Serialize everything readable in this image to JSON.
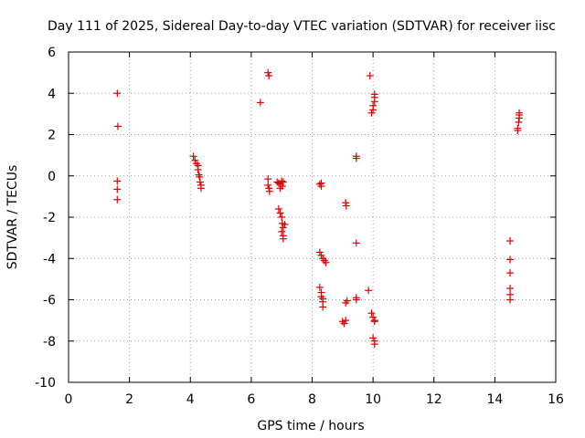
{
  "chart_data": {
    "type": "scatter",
    "title": "Day 111 of 2025, Sidereal Day-to-day VTEC variation (SDTVAR) for receiver iisc",
    "xlabel": "GPS time / hours",
    "ylabel": "SDTVAR / TECUs",
    "xlim": [
      0,
      16
    ],
    "ylim": [
      -10,
      6
    ],
    "xticks": [
      0,
      2,
      4,
      6,
      8,
      10,
      12,
      14,
      16
    ],
    "yticks": [
      -10,
      -8,
      -6,
      -4,
      -2,
      0,
      2,
      4,
      6
    ],
    "grid": true,
    "marker": "plus",
    "color": "#e00000",
    "series": [
      {
        "name": "SDTVAR",
        "points": [
          [
            1.6,
            4.0
          ],
          [
            1.62,
            2.4
          ],
          [
            1.6,
            -0.25
          ],
          [
            1.6,
            -0.65
          ],
          [
            1.6,
            -1.15
          ],
          [
            4.1,
            0.95
          ],
          [
            4.15,
            0.75
          ],
          [
            4.2,
            0.6
          ],
          [
            4.25,
            0.5
          ],
          [
            4.25,
            0.3
          ],
          [
            4.28,
            0.05
          ],
          [
            4.3,
            -0.05
          ],
          [
            4.32,
            -0.3
          ],
          [
            4.35,
            -0.45
          ],
          [
            4.35,
            -0.6
          ],
          [
            6.3,
            3.55
          ],
          [
            6.55,
            5.0
          ],
          [
            6.58,
            4.85
          ],
          [
            6.55,
            -0.15
          ],
          [
            6.55,
            -0.45
          ],
          [
            6.58,
            -0.6
          ],
          [
            6.6,
            -0.75
          ],
          [
            6.85,
            -0.3
          ],
          [
            6.9,
            -0.35
          ],
          [
            6.95,
            -0.4
          ],
          [
            7.0,
            -0.25
          ],
          [
            7.02,
            -0.5
          ],
          [
            7.05,
            -0.3
          ],
          [
            6.95,
            -0.6
          ],
          [
            6.9,
            -1.6
          ],
          [
            6.95,
            -1.8
          ],
          [
            7.0,
            -2.0
          ],
          [
            7.02,
            -2.3
          ],
          [
            7.05,
            -2.5
          ],
          [
            7.0,
            -2.7
          ],
          [
            7.05,
            -2.9
          ],
          [
            7.05,
            -3.05
          ],
          [
            7.1,
            -2.35
          ],
          [
            8.25,
            -0.4
          ],
          [
            8.3,
            -0.5
          ],
          [
            8.3,
            -0.35
          ],
          [
            8.25,
            -3.7
          ],
          [
            8.3,
            -3.85
          ],
          [
            8.35,
            -4.0
          ],
          [
            8.4,
            -4.1
          ],
          [
            8.45,
            -4.2
          ],
          [
            8.25,
            -5.4
          ],
          [
            8.3,
            -5.65
          ],
          [
            8.3,
            -5.85
          ],
          [
            8.35,
            -5.95
          ],
          [
            8.35,
            -6.1
          ],
          [
            8.35,
            -6.35
          ],
          [
            9.0,
            -7.05
          ],
          [
            9.05,
            -7.15
          ],
          [
            9.1,
            -7.0
          ],
          [
            9.1,
            -6.15
          ],
          [
            9.15,
            -6.05
          ],
          [
            9.1,
            -1.3
          ],
          [
            9.12,
            -1.45
          ],
          [
            9.45,
            0.85
          ],
          [
            9.45,
            0.95
          ],
          [
            9.45,
            -3.25
          ],
          [
            9.45,
            -5.9
          ],
          [
            9.45,
            -6.0
          ],
          [
            9.9,
            4.85
          ],
          [
            9.85,
            -5.55
          ],
          [
            9.95,
            -6.65
          ],
          [
            10.0,
            -6.85
          ],
          [
            10.05,
            -7.0
          ],
          [
            10.05,
            -7.05
          ],
          [
            10.0,
            -7.85
          ],
          [
            10.05,
            -8.0
          ],
          [
            10.05,
            -8.15
          ],
          [
            9.95,
            3.05
          ],
          [
            10.0,
            3.2
          ],
          [
            10.0,
            3.4
          ],
          [
            10.05,
            3.6
          ],
          [
            10.05,
            3.8
          ],
          [
            10.05,
            3.95
          ],
          [
            14.5,
            -3.15
          ],
          [
            14.5,
            -4.05
          ],
          [
            14.5,
            -4.7
          ],
          [
            14.5,
            -5.45
          ],
          [
            14.5,
            -5.75
          ],
          [
            14.5,
            -6.0
          ],
          [
            14.75,
            2.2
          ],
          [
            14.75,
            2.3
          ],
          [
            14.78,
            2.6
          ],
          [
            14.8,
            2.8
          ],
          [
            14.8,
            2.95
          ],
          [
            14.8,
            3.05
          ]
        ]
      }
    ]
  }
}
